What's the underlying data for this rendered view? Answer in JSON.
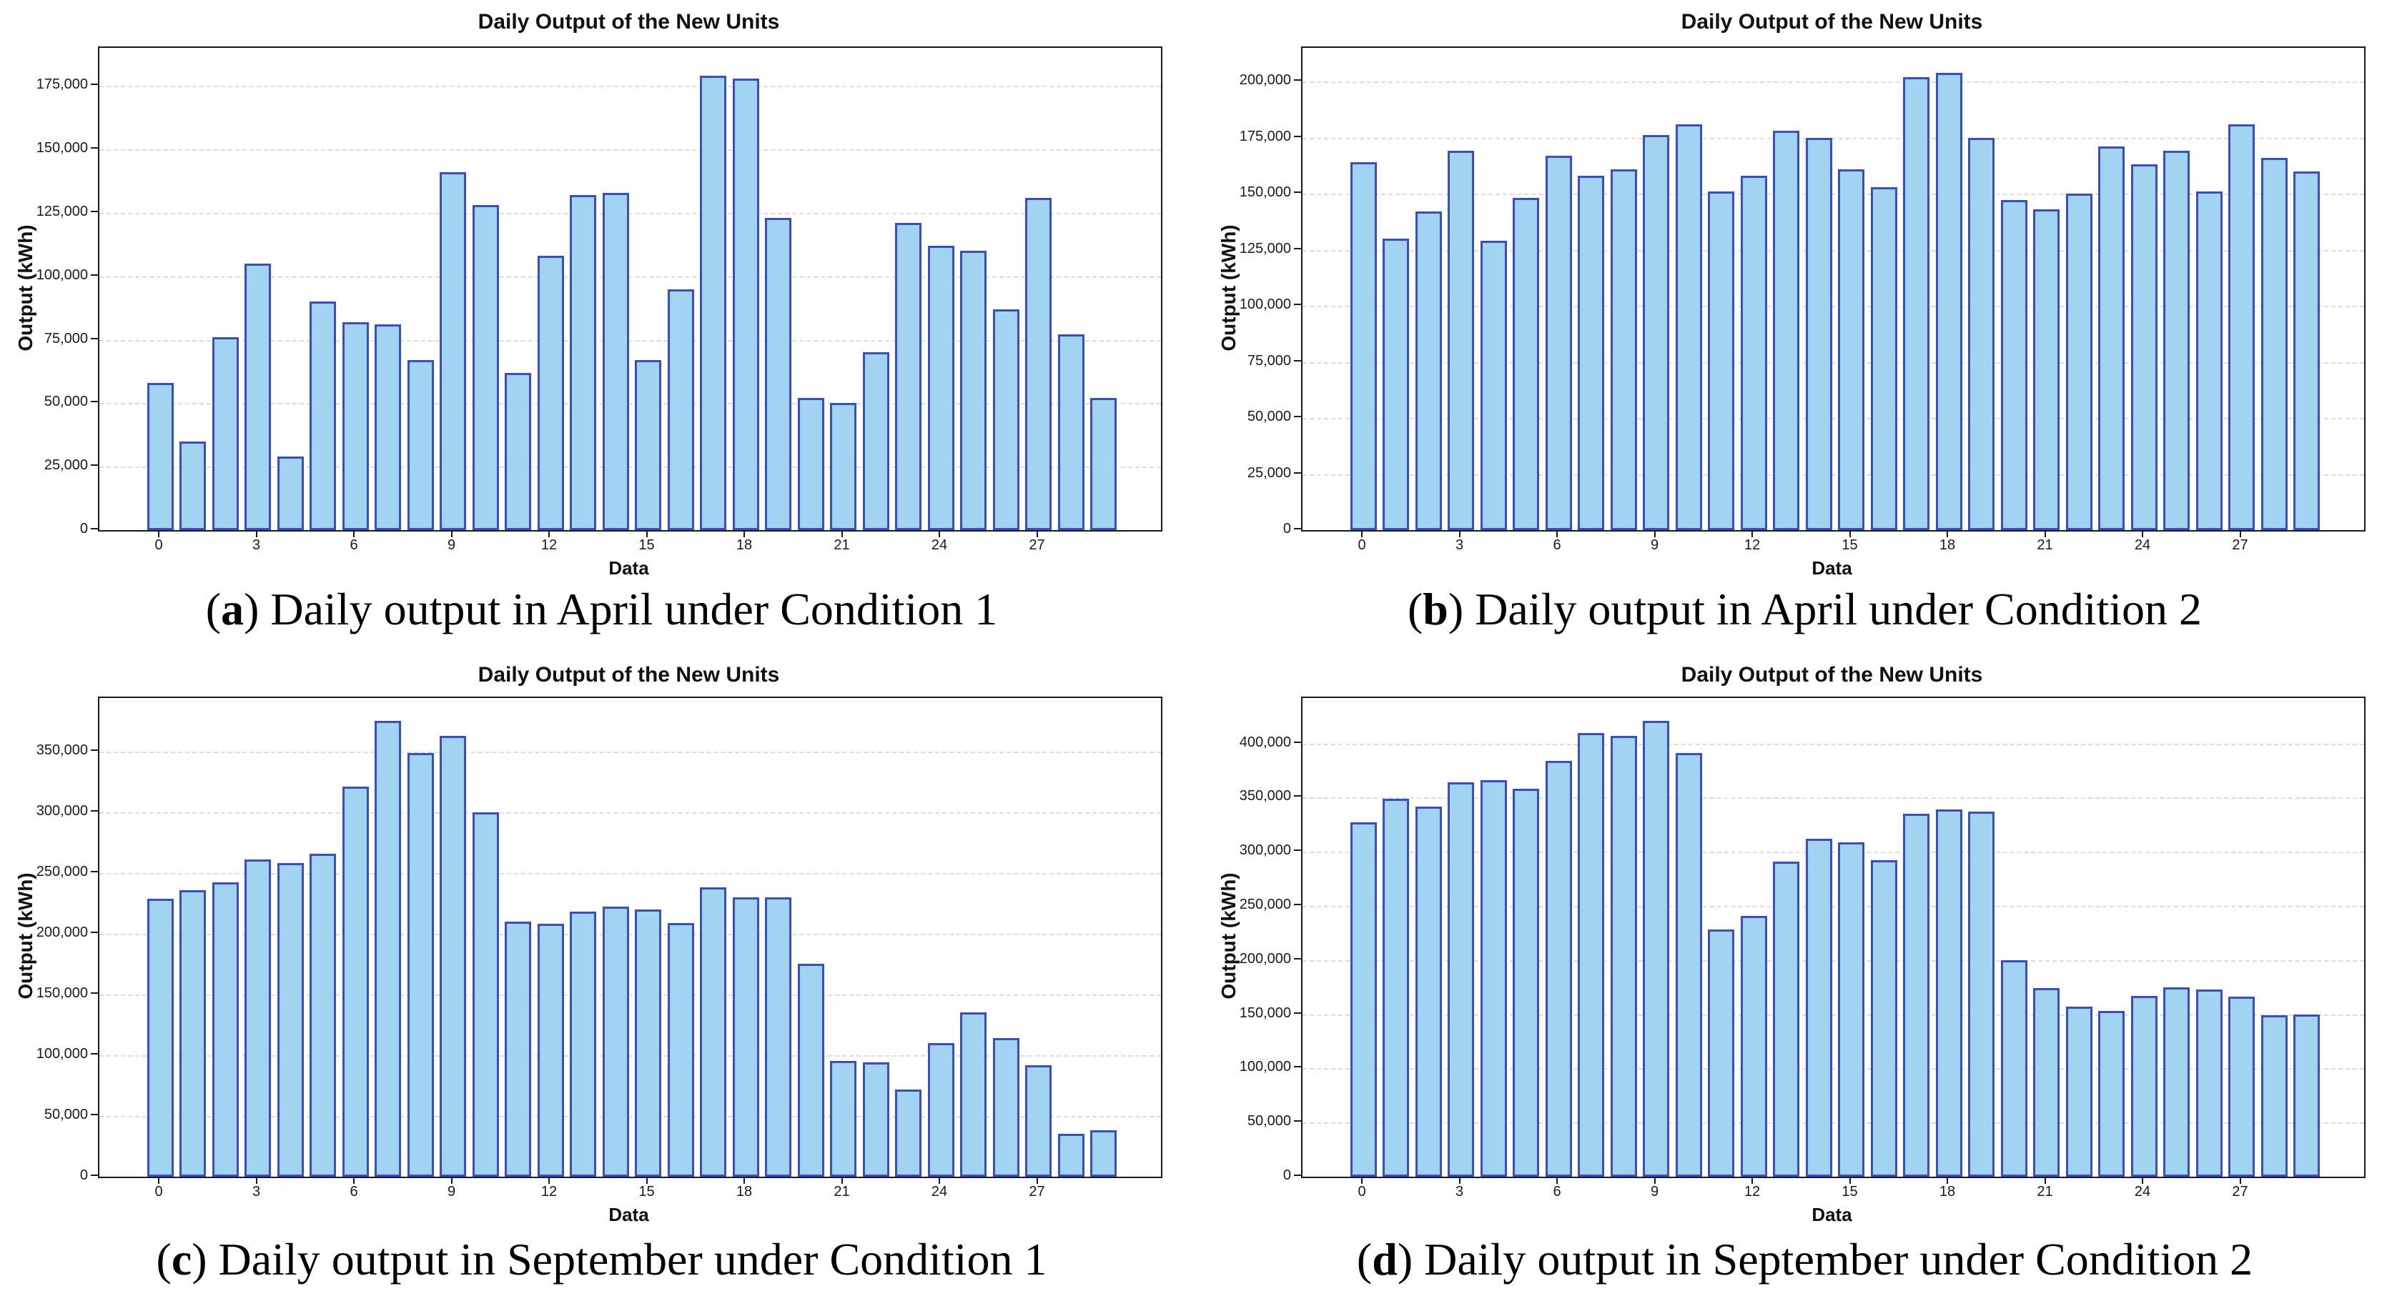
{
  "figure": {
    "paren_open": "(",
    "paren_close": ")",
    "background": "#ffffff"
  },
  "style": {
    "bar_fill": "#a1d4f1",
    "bar_edge": "#3b4cc8",
    "grid_color": "#dcdcdc",
    "spine_color": "#1a1a1a",
    "text_color": "#111111"
  },
  "chart_data": [
    {
      "id": "a",
      "type": "bar",
      "title": "Daily Output of the New Units",
      "xlabel": "Data",
      "ylabel": "Output (kWh)",
      "x": [
        0,
        1,
        2,
        3,
        4,
        5,
        6,
        7,
        8,
        9,
        10,
        11,
        12,
        13,
        14,
        15,
        16,
        17,
        18,
        19,
        20,
        21,
        22,
        23,
        24,
        25,
        26,
        27,
        28,
        29
      ],
      "x_ticks": [
        0,
        3,
        6,
        9,
        12,
        15,
        18,
        21,
        24,
        27
      ],
      "values": [
        58000,
        35000,
        76000,
        105000,
        29000,
        90000,
        82000,
        81000,
        67000,
        141000,
        128000,
        62000,
        108000,
        132000,
        133000,
        67000,
        95000,
        179000,
        178000,
        123000,
        52000,
        50000,
        70000,
        121000,
        112000,
        110000,
        87000,
        131000,
        77000,
        52000
      ],
      "ylim": [
        0,
        190000
      ],
      "ytick_step": 25000,
      "ytick_max": 175000,
      "grid": true,
      "legend": "none",
      "caption": {
        "letter": "a",
        "text": "Daily output in April under Condition 1"
      }
    },
    {
      "id": "b",
      "type": "bar",
      "title": "Daily Output of the New Units",
      "xlabel": "Data",
      "ylabel": "Output (kWh)",
      "x": [
        0,
        1,
        2,
        3,
        4,
        5,
        6,
        7,
        8,
        9,
        10,
        11,
        12,
        13,
        14,
        15,
        16,
        17,
        18,
        19,
        20,
        21,
        22,
        23,
        24,
        25,
        26,
        27,
        28,
        29
      ],
      "x_ticks": [
        0,
        3,
        6,
        9,
        12,
        15,
        18,
        21,
        24,
        27
      ],
      "values": [
        164000,
        130000,
        142000,
        169000,
        129000,
        148000,
        167000,
        158000,
        161000,
        176000,
        181000,
        151000,
        158000,
        178000,
        175000,
        161000,
        153000,
        202000,
        204000,
        175000,
        147000,
        143000,
        150000,
        171000,
        163000,
        169000,
        151000,
        181000,
        166000,
        160000
      ],
      "ylim": [
        0,
        215000
      ],
      "ytick_step": 25000,
      "ytick_max": 200000,
      "grid": true,
      "legend": "none",
      "caption": {
        "letter": "b",
        "text": "Daily output in April under Condition 2"
      }
    },
    {
      "id": "c",
      "type": "bar",
      "title": "Daily Output of the New Units",
      "xlabel": "Data",
      "ylabel": "Output (kWh)",
      "x": [
        0,
        1,
        2,
        3,
        4,
        5,
        6,
        7,
        8,
        9,
        10,
        11,
        12,
        13,
        14,
        15,
        16,
        17,
        18,
        19,
        20,
        21,
        22,
        23,
        24,
        25,
        26,
        27,
        28,
        29
      ],
      "x_ticks": [
        0,
        3,
        6,
        9,
        12,
        15,
        18,
        21,
        24,
        27
      ],
      "values": [
        229000,
        236000,
        242000,
        261000,
        258000,
        266000,
        321000,
        375000,
        349000,
        363000,
        300000,
        210000,
        208000,
        218000,
        222000,
        220000,
        209000,
        238000,
        230000,
        230000,
        175000,
        95000,
        94000,
        72000,
        110000,
        135000,
        114000,
        92000,
        35000,
        38000
      ],
      "ylim": [
        0,
        394000
      ],
      "ytick_step": 50000,
      "ytick_max": 350000,
      "grid": true,
      "legend": "none",
      "caption": {
        "letter": "c",
        "text": "Daily output in September under Condition 1"
      }
    },
    {
      "id": "d",
      "type": "bar",
      "title": "Daily Output of the New Units",
      "xlabel": "Data",
      "ylabel": "Output (kWh)",
      "x": [
        0,
        1,
        2,
        3,
        4,
        5,
        6,
        7,
        8,
        9,
        10,
        11,
        12,
        13,
        14,
        15,
        16,
        17,
        18,
        19,
        20,
        21,
        22,
        23,
        24,
        25,
        26,
        27,
        28,
        29
      ],
      "x_ticks": [
        0,
        3,
        6,
        9,
        12,
        15,
        18,
        21,
        24,
        27
      ],
      "values": [
        327000,
        349000,
        342000,
        364000,
        366000,
        358000,
        384000,
        410000,
        407000,
        421000,
        391000,
        228000,
        241000,
        291000,
        312000,
        309000,
        292000,
        335000,
        339000,
        337000,
        200000,
        174000,
        157000,
        153000,
        167000,
        175000,
        173000,
        166000,
        149000,
        150000
      ],
      "ylim": [
        0,
        442000
      ],
      "ytick_step": 50000,
      "ytick_max": 400000,
      "grid": true,
      "legend": "none",
      "caption": {
        "letter": "d",
        "text": "Daily output in September under Condition 2"
      }
    }
  ]
}
